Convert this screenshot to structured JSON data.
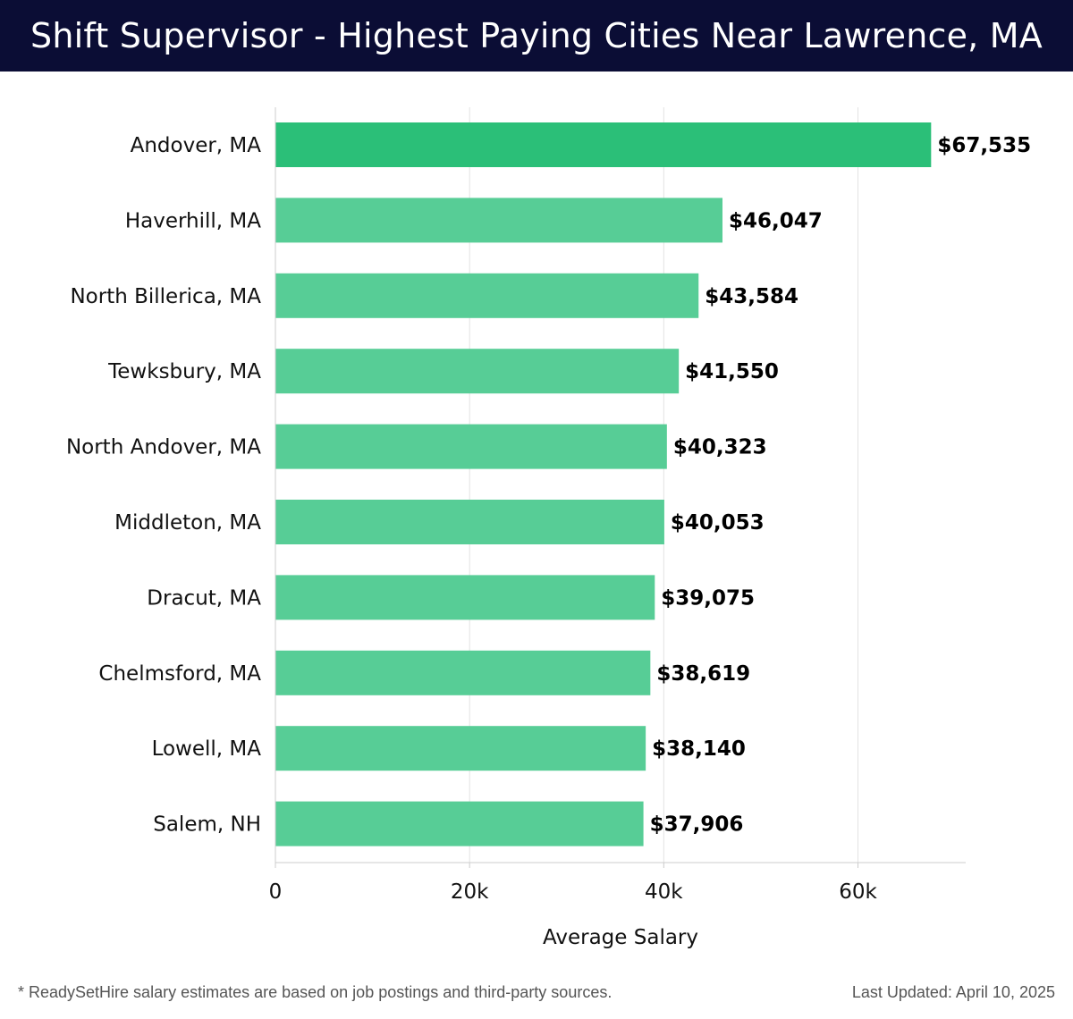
{
  "header": {
    "title": "Shift Supervisor - Highest Paying Cities Near Lawrence, MA"
  },
  "chart_data": {
    "type": "bar",
    "orientation": "horizontal",
    "categories": [
      "Andover, MA",
      "Haverhill, MA",
      "North Billerica, MA",
      "Tewksbury, MA",
      "North Andover, MA",
      "Middleton, MA",
      "Dracut, MA",
      "Chelmsford, MA",
      "Lowell, MA",
      "Salem, NH"
    ],
    "values": [
      67535,
      46047,
      43584,
      41550,
      40323,
      40053,
      39075,
      38619,
      38140,
      37906
    ],
    "value_labels": [
      "$67,535",
      "$46,047",
      "$43,584",
      "$41,550",
      "$40,323",
      "$40,053",
      "$39,075",
      "$38,619",
      "$38,140",
      "$37,906"
    ],
    "xlabel": "Average Salary",
    "ylabel": "",
    "xlim": [
      0,
      71000
    ],
    "xticks": [
      0,
      20000,
      40000,
      60000
    ],
    "xtick_labels": [
      "0",
      "20k",
      "40k",
      "60k"
    ],
    "grid": "vertical",
    "colors": {
      "top": "#2bbf78",
      "bar": "#57cd96"
    }
  },
  "footer": {
    "note": "* ReadySetHire salary estimates are based on job postings and third-party sources.",
    "updated": "Last Updated: April 10, 2025"
  }
}
